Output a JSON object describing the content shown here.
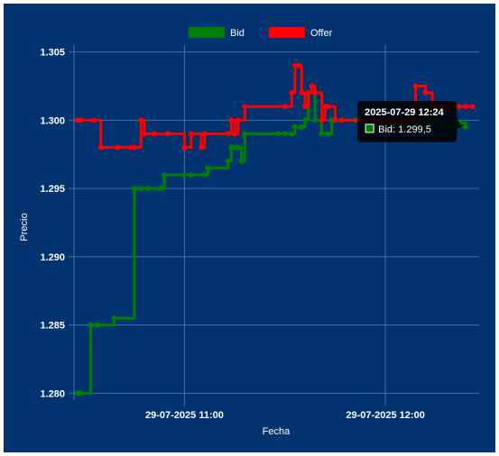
{
  "chart_data": {
    "type": "line",
    "xlabel": "Fecha",
    "ylabel": "Precio",
    "x_ticks": [
      {
        "t": "11:00",
        "label": "29-07-2025 11:00"
      },
      {
        "t": "12:00",
        "label": "29-07-2025 12:00"
      }
    ],
    "xlim": [
      "10:27",
      "12:28"
    ],
    "ylim": [
      1.2795,
      1.3055
    ],
    "y_ticks": [
      1.28,
      1.285,
      1.29,
      1.295,
      1.3,
      1.305
    ],
    "y_tick_labels": [
      "1.280",
      "1.285",
      "1.290",
      "1.295",
      "1.300",
      "1.305"
    ],
    "grid": true,
    "legend_position": "top-center",
    "series": [
      {
        "name": "Bid",
        "color": "#008000",
        "points": [
          [
            "10:28",
            1.28
          ],
          [
            "10:29",
            1.28
          ],
          [
            "10:32",
            1.285
          ],
          [
            "10:34",
            1.285
          ],
          [
            "10:39",
            1.2855
          ],
          [
            "10:45",
            1.295
          ],
          [
            "10:47",
            1.295
          ],
          [
            "10:49",
            1.295
          ],
          [
            "10:53",
            1.295
          ],
          [
            "10:54",
            1.296
          ],
          [
            "11:00",
            1.296
          ],
          [
            "11:02",
            1.296
          ],
          [
            "11:06",
            1.296
          ],
          [
            "11:07",
            1.2965
          ],
          [
            "11:13",
            1.297
          ],
          [
            "11:14",
            1.298
          ],
          [
            "11:15",
            1.298
          ],
          [
            "11:16",
            1.298
          ],
          [
            "11:17",
            1.297
          ],
          [
            "11:18",
            1.299
          ],
          [
            "11:28",
            1.299
          ],
          [
            "11:30",
            1.299
          ],
          [
            "11:32",
            1.299
          ],
          [
            "11:33",
            1.2995
          ],
          [
            "11:35",
            1.2995
          ],
          [
            "11:36",
            1.3
          ],
          [
            "11:37",
            1.302
          ],
          [
            "11:39",
            1.3
          ],
          [
            "11:41",
            1.299
          ],
          [
            "11:43",
            1.299
          ],
          [
            "11:44",
            1.3
          ],
          [
            "11:45",
            1.3
          ],
          [
            "11:47",
            1.3
          ],
          [
            "11:51",
            1.3
          ],
          [
            "12:00",
            1.2998
          ],
          [
            "12:05",
            1.2995
          ],
          [
            "12:10",
            1.3
          ],
          [
            "12:17",
            1.2995
          ],
          [
            "12:22",
            1.2998
          ],
          [
            "12:24",
            1.2995
          ]
        ]
      },
      {
        "name": "Offer",
        "color": "#ff0000",
        "points": [
          [
            "10:28",
            1.3
          ],
          [
            "10:29",
            1.3
          ],
          [
            "10:33",
            1.3
          ],
          [
            "10:35",
            1.298
          ],
          [
            "10:40",
            1.298
          ],
          [
            "10:44",
            1.298
          ],
          [
            "10:45",
            1.298
          ],
          [
            "10:47",
            1.3
          ],
          [
            "10:48",
            1.299
          ],
          [
            "10:51",
            1.299
          ],
          [
            "10:55",
            1.299
          ],
          [
            "11:00",
            1.298
          ],
          [
            "11:02",
            1.299
          ],
          [
            "11:05",
            1.298
          ],
          [
            "11:06",
            1.299
          ],
          [
            "11:13",
            1.299
          ],
          [
            "11:14",
            1.3
          ],
          [
            "11:15",
            1.299
          ],
          [
            "11:16",
            1.3
          ],
          [
            "11:18",
            1.301
          ],
          [
            "11:30",
            1.301
          ],
          [
            "11:32",
            1.302
          ],
          [
            "11:33",
            1.304
          ],
          [
            "11:34",
            1.304
          ],
          [
            "11:35",
            1.302
          ],
          [
            "11:36",
            1.301
          ],
          [
            "11:37",
            1.302
          ],
          [
            "11:38",
            1.3025
          ],
          [
            "11:39",
            1.302
          ],
          [
            "11:41",
            1.3
          ],
          [
            "11:42",
            1.301
          ],
          [
            "11:43",
            1.301
          ],
          [
            "11:45",
            1.3
          ],
          [
            "11:47",
            1.3
          ],
          [
            "12:09",
            1.3025
          ],
          [
            "12:12",
            1.302
          ],
          [
            "12:14",
            1.301
          ],
          [
            "12:16",
            1.301
          ],
          [
            "12:20",
            1.301
          ],
          [
            "12:22",
            1.301
          ],
          [
            "12:24",
            1.301
          ],
          [
            "12:26",
            1.301
          ]
        ]
      }
    ],
    "tooltip": {
      "title": "2025-07-29 12:24",
      "label": "Bid: 1.299,5",
      "color": "#008000",
      "anchor": [
        "12:24",
        1.2995
      ]
    }
  },
  "colors": {
    "background": "#003370",
    "grid": "#4d6f99",
    "text": "#ffffff",
    "tooltip_bg": "#000000"
  }
}
